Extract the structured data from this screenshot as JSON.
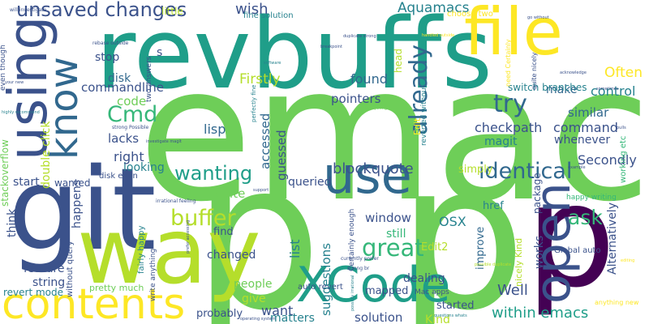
{
  "palette": {
    "navy": "#3b528b",
    "dkblue": "#31688e",
    "teal": "#26828e",
    "aqua": "#1f9e89",
    "green": "#35b779",
    "ltgreen": "#6ece58",
    "lime": "#b5de2b",
    "yellow": "#fde725",
    "purple": "#482878",
    "dkpurple": "#440154"
  },
  "words": [
    {
      "text": "emacs",
      "color": "ltgreen",
      "rotated": false
    },
    {
      "text": "p",
      "color": "ltgreen",
      "rotated": false
    },
    {
      "text": "p",
      "color": "ltgreen",
      "rotated": false
    },
    {
      "text": "p",
      "color": "dkpurple",
      "rotated": false
    },
    {
      "text": "git",
      "color": "navy",
      "rotated": false
    },
    {
      "text": "revbuffs",
      "color": "aqua",
      "rotated": false
    },
    {
      "text": "way",
      "color": "lime",
      "rotated": false
    },
    {
      "text": "file",
      "color": "yellow",
      "rotated": false
    },
    {
      "text": "using",
      "color": "navy",
      "rotated": true
    },
    {
      "text": "use",
      "color": "dkblue",
      "rotated": false
    },
    {
      "text": "XCode",
      "color": "aqua",
      "rotated": false
    },
    {
      "text": "contents",
      "color": "yellow",
      "rotated": false
    },
    {
      "text": "open",
      "color": "navy",
      "rotated": true
    },
    {
      "text": "know",
      "color": "dkblue",
      "rotated": true
    },
    {
      "text": "unsaved changes",
      "color": "navy",
      "rotated": false
    },
    {
      "text": "Cmd",
      "color": "green",
      "rotated": false
    },
    {
      "text": "try",
      "color": "dkblue",
      "rotated": false
    },
    {
      "text": "identical",
      "color": "dkblue",
      "rotated": false
    },
    {
      "text": "wanting",
      "color": "aqua",
      "rotated": false
    },
    {
      "text": "buffer",
      "color": "lime",
      "rotated": false
    },
    {
      "text": "great",
      "color": "green",
      "rotated": false
    },
    {
      "text": "blockquote",
      "color": "navy",
      "rotated": false
    },
    {
      "text": "ask",
      "color": "green",
      "rotated": false
    },
    {
      "text": "already",
      "color": "dkblue",
      "rotated": true
    },
    {
      "text": "Aquamacs",
      "color": "teal",
      "rotated": false
    },
    {
      "text": "wish",
      "color": "navy",
      "rotated": false
    },
    {
      "text": "Firstly",
      "color": "lime",
      "rotated": false
    },
    {
      "text": "Often",
      "color": "yellow",
      "rotated": false
    },
    {
      "text": "control",
      "color": "teal",
      "rotated": false
    },
    {
      "text": "command",
      "color": "navy",
      "rotated": false
    },
    {
      "text": "similar",
      "color": "dkblue",
      "rotated": false
    },
    {
      "text": "checkpath",
      "color": "navy",
      "rotated": false
    },
    {
      "text": "magit",
      "color": "teal",
      "rotated": false
    },
    {
      "text": "whenever",
      "color": "navy",
      "rotated": false
    },
    {
      "text": "make",
      "color": "dkblue",
      "rotated": false
    },
    {
      "text": "switch branches",
      "color": "teal",
      "rotated": false
    },
    {
      "text": "pointers",
      "color": "navy",
      "rotated": false
    },
    {
      "text": "found",
      "color": "dkblue",
      "rotated": false
    },
    {
      "text": "lisp",
      "color": "dkblue",
      "rotated": false
    },
    {
      "text": "accessed",
      "color": "dkblue",
      "rotated": true
    },
    {
      "text": "guessed",
      "color": "navy",
      "rotated": true
    },
    {
      "text": "queried",
      "color": "navy",
      "rotated": false
    },
    {
      "text": "Secondly",
      "color": "navy",
      "rotated": false
    },
    {
      "text": "Alternatively",
      "color": "navy",
      "rotated": true
    },
    {
      "text": "within emacs",
      "color": "aqua",
      "rotated": false
    },
    {
      "text": "Well",
      "color": "navy",
      "rotated": false
    },
    {
      "text": "window",
      "color": "navy",
      "rotated": false
    },
    {
      "text": "still",
      "color": "green",
      "rotated": false
    },
    {
      "text": "OSX",
      "color": "teal",
      "rotated": false
    },
    {
      "text": "Edit2",
      "color": "lime",
      "rotated": false
    },
    {
      "text": "list",
      "color": "teal",
      "rotated": true
    },
    {
      "text": "suggestions",
      "color": "teal",
      "rotated": true
    },
    {
      "text": "solution",
      "color": "navy",
      "rotated": false
    },
    {
      "text": "matters",
      "color": "teal",
      "rotated": false
    },
    {
      "text": "Kind",
      "color": "lime",
      "rotated": false
    },
    {
      "text": "want",
      "color": "navy",
      "rotated": false
    },
    {
      "text": "give",
      "color": "lime",
      "rotated": false
    },
    {
      "text": "people",
      "color": "ltgreen",
      "rotated": false
    },
    {
      "text": "probably",
      "color": "navy",
      "rotated": false
    },
    {
      "text": "changed",
      "color": "navy",
      "rotated": false
    },
    {
      "text": "find",
      "color": "navy",
      "rotated": false
    },
    {
      "text": "quite",
      "color": "ltgreen",
      "rotated": false
    },
    {
      "text": "looking",
      "color": "teal",
      "rotated": false
    },
    {
      "text": "right",
      "color": "navy",
      "rotated": false
    },
    {
      "text": "lacks",
      "color": "navy",
      "rotated": false
    },
    {
      "text": "code",
      "color": "ltgreen",
      "rotated": false
    },
    {
      "text": "commandline",
      "color": "navy",
      "rotated": false
    },
    {
      "text": "disk",
      "color": "dkblue",
      "rotated": false
    },
    {
      "text": "stop",
      "color": "navy",
      "rotated": false
    },
    {
      "text": "little",
      "color": "lime",
      "rotated": false
    },
    {
      "text": "double click",
      "color": "lime",
      "rotated": true
    },
    {
      "text": "happens",
      "color": "navy",
      "rotated": true
    },
    {
      "text": "wanted",
      "color": "navy",
      "rotated": false
    },
    {
      "text": "start",
      "color": "navy",
      "rotated": false
    },
    {
      "text": "think",
      "color": "navy",
      "rotated": true
    },
    {
      "text": "feature",
      "color": "navy",
      "rotated": false
    },
    {
      "text": "string",
      "color": "navy",
      "rotated": false
    },
    {
      "text": "revert mode",
      "color": "teal",
      "rotated": false
    },
    {
      "text": "stackoverflow",
      "color": "ltgreen",
      "rotated": true
    },
    {
      "text": "pretty much",
      "color": "ltgreen",
      "rotated": false
    },
    {
      "text": "simply",
      "color": "lime",
      "rotated": false
    },
    {
      "text": "started",
      "color": "navy",
      "rotated": false
    },
    {
      "text": "dealing",
      "color": "navy",
      "rotated": false
    },
    {
      "text": "mapped",
      "color": "navy",
      "rotated": false
    },
    {
      "text": "works",
      "color": "navy",
      "rotated": true
    },
    {
      "text": "improve",
      "color": "dkblue",
      "rotated": true
    },
    {
      "text": "package",
      "color": "navy",
      "rotated": true
    },
    {
      "text": "href",
      "color": "teal",
      "rotated": false
    },
    {
      "text": "nicely Kind",
      "color": "lime",
      "rotated": true
    },
    {
      "text": "Global auto",
      "color": "navy",
      "rotated": false
    },
    {
      "text": "auto revert",
      "color": "navy",
      "rotated": false
    },
    {
      "text": "head",
      "color": "lime",
      "rotated": true
    },
    {
      "text": "Edit",
      "color": "yellow",
      "rotated": true
    },
    {
      "text": "working etc",
      "color": "green",
      "rotated": true
    },
    {
      "text": "happy writing",
      "color": "green",
      "rotated": false
    },
    {
      "text": "anything new",
      "color": "yellow",
      "rotated": false
    },
    {
      "text": "Mac apps",
      "color": "navy",
      "rotated": false
    },
    {
      "text": "fairly happy",
      "color": "teal",
      "rotated": true
    },
    {
      "text": "two answers",
      "color": "navy",
      "rotated": true
    },
    {
      "text": "fine solution",
      "color": "teal",
      "rotated": false
    },
    {
      "text": "choose two",
      "color": "yellow",
      "rotated": false
    },
    {
      "text": "reverted without",
      "color": "teal",
      "rotated": true
    },
    {
      "text": "need Certainly",
      "color": "yellow",
      "rotated": true
    },
    {
      "text": "quite nicely",
      "color": "navy",
      "rotated": true
    },
    {
      "text": "even though",
      "color": "navy",
      "rotated": true
    },
    {
      "text": "will investigate",
      "color": "navy",
      "rotated": false
    },
    {
      "text": "rebase outside",
      "color": "navy",
      "rotated": false
    },
    {
      "text": "s",
      "color": "navy",
      "rotated": false
    },
    {
      "text": "without query",
      "color": "navy",
      "rotated": true
    },
    {
      "text": "write anything",
      "color": "navy",
      "rotated": true
    },
    {
      "text": "disk even",
      "color": "navy",
      "rotated": false
    },
    {
      "text": "strong Possible",
      "color": "navy",
      "rotated": false
    },
    {
      "text": "Certainly enough",
      "color": "navy",
      "rotated": true
    },
    {
      "text": "perfectly fine",
      "color": "teal",
      "rotated": true
    },
    {
      "text": "irrational feeling",
      "color": "navy",
      "rotated": false
    },
    {
      "text": "investigate magit",
      "color": "navy",
      "rotated": false
    },
    {
      "text": "strong br",
      "color": "navy",
      "rotated": false
    },
    {
      "text": "currently prefer",
      "color": "navy",
      "rotated": false
    },
    {
      "text": "questions whats",
      "color": "teal",
      "rotated": false
    },
    {
      "text": "possible duplicate",
      "color": "lime",
      "rotated": false
    },
    {
      "text": "operating system",
      "color": "navy",
      "rotated": false
    },
    {
      "text": "highly recommend",
      "color": "teal",
      "rotated": false
    },
    {
      "text": "go without",
      "color": "navy",
      "rotated": false
    },
    {
      "text": "acknowledge",
      "color": "navy",
      "rotated": false
    },
    {
      "text": "handled outside",
      "color": "yellow",
      "rotated": false
    },
    {
      "text": "breakpoint",
      "color": "navy",
      "rotated": false
    },
    {
      "text": "duplicate strong",
      "color": "navy",
      "rotated": false
    },
    {
      "text": "software",
      "color": "teal",
      "rotated": false
    },
    {
      "text": "everything",
      "color": "ltgreen",
      "rotated": false
    },
    {
      "text": "prefer accessing",
      "color": "navy",
      "rotated": true
    },
    {
      "text": "possibly irrational",
      "color": "teal",
      "rotated": true
    },
    {
      "text": "support",
      "color": "navy",
      "rotated": false
    },
    {
      "text": "editing",
      "color": "yellow",
      "rotated": false
    },
    {
      "text": "pulls",
      "color": "navy",
      "rotated": false
    },
    {
      "text": "example",
      "color": "navy",
      "rotated": false
    },
    {
      "text": "your new",
      "color": "navy",
      "rotated": false
    },
    {
      "text": "sometimes",
      "color": "navy",
      "rotated": false
    }
  ]
}
